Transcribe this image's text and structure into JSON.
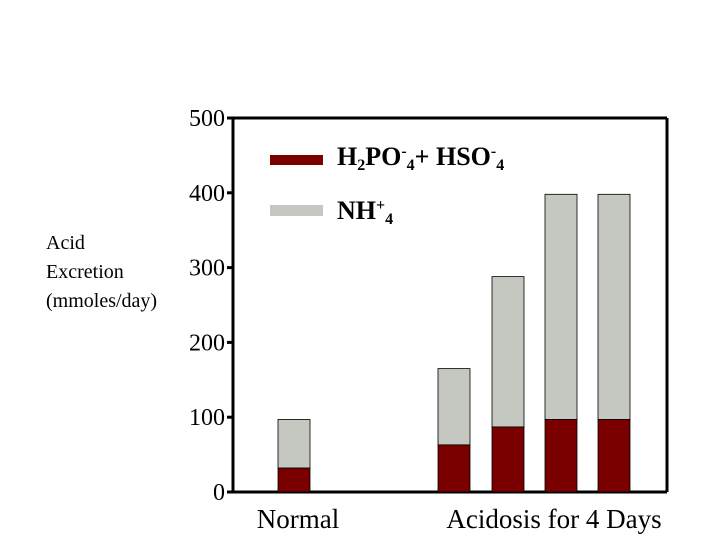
{
  "chart_data": {
    "type": "bar",
    "stacked": true,
    "ylabel": [
      "Acid",
      "Excretion",
      "(mmoles/day)"
    ],
    "ylim": [
      0,
      500
    ],
    "yticks": [
      "0",
      "100",
      "200",
      "300",
      "400",
      "500"
    ],
    "category_labels": [
      "Normal",
      "Acidosis for 4 Days"
    ],
    "bars": [
      {
        "group": "Normal",
        "bottom": 32,
        "top": 97
      },
      {
        "group": "Acidosis for 4 Days",
        "bottom": 63,
        "top": 165
      },
      {
        "group": "Acidosis for 4 Days",
        "bottom": 87,
        "top": 288
      },
      {
        "group": "Acidosis for 4 Days",
        "bottom": 97,
        "top": 398
      },
      {
        "group": "Acidosis for 4 Days",
        "bottom": 97,
        "top": 398
      }
    ],
    "series": [
      {
        "name": "H2PO4- + HSO4-",
        "color": "#7a0000",
        "values": [
          32,
          63,
          87,
          97,
          97
        ]
      },
      {
        "name": "NH4+",
        "color": "#c4c8c0",
        "values": [
          65,
          102,
          201,
          301,
          301
        ]
      }
    ],
    "legend": {
      "placement": "top",
      "items": [
        {
          "series": 0,
          "parts": [
            [
              "H",
              ""
            ],
            [
              "2",
              "sub"
            ],
            [
              "PO",
              ""
            ],
            [
              "-",
              "sup"
            ],
            [
              "4",
              "sub"
            ],
            [
              "+  HSO",
              ""
            ],
            [
              "-",
              "sup"
            ],
            [
              "4",
              "sub"
            ]
          ]
        },
        {
          "series": 1,
          "parts": [
            [
              "NH",
              ""
            ],
            [
              "+",
              "sup"
            ],
            [
              "4",
              "sub"
            ]
          ]
        }
      ]
    },
    "grid": false
  }
}
